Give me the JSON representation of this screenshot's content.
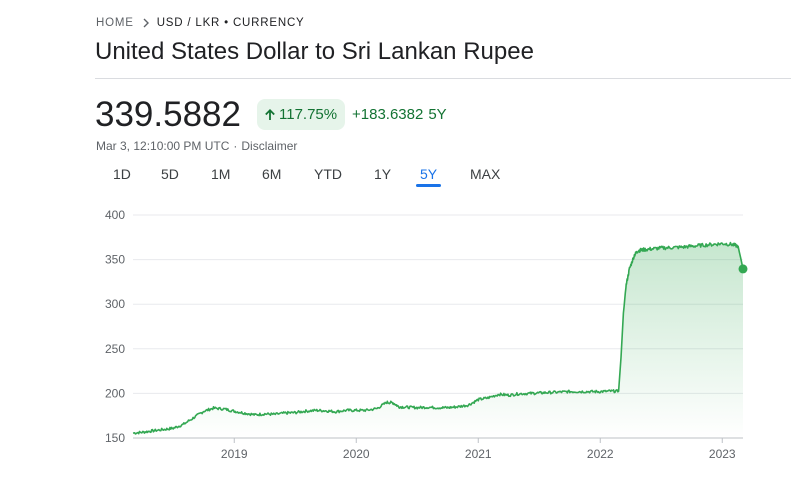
{
  "breadcrumb": {
    "home": "HOME",
    "current": "USD / LKR • CURRENCY"
  },
  "title": "United States Dollar to Sri Lankan Rupee",
  "price": "339.5882",
  "change": {
    "percent": "117.75%",
    "amount": "+183.6382",
    "period": "5Y"
  },
  "timestamp": {
    "time": "Mar 3, 12:10:00 PM UTC",
    "disclaimer": "Disclaimer"
  },
  "ranges": [
    "1D",
    "5D",
    "1M",
    "6M",
    "YTD",
    "1Y",
    "5Y",
    "MAX"
  ],
  "active_range": "5Y",
  "colors": {
    "positive": "#34a853",
    "positive_text": "#137333",
    "accent": "#1a73e8"
  },
  "chart_data": {
    "type": "area",
    "x_tick_labels": [
      "2019",
      "2020",
      "2021",
      "2022",
      "2023"
    ],
    "x_ticks": [
      2019.0,
      2020.0,
      2021.0,
      2022.0,
      2023.0
    ],
    "xlim": [
      2018.17,
      2023.17
    ],
    "y_tick_labels": [
      "150",
      "200",
      "250",
      "300",
      "350",
      "400"
    ],
    "ylim": [
      150,
      400
    ],
    "grid": true,
    "series": [
      {
        "x": [
          2018.17,
          2018.25,
          2018.33,
          2018.42,
          2018.5,
          2018.58,
          2018.67,
          2018.75,
          2018.83,
          2018.92,
          2019.0,
          2019.08,
          2019.17,
          2019.25,
          2019.33,
          2019.42,
          2019.5,
          2019.58,
          2019.67,
          2019.75,
          2019.83,
          2019.92,
          2020.0,
          2020.08,
          2020.17,
          2020.25,
          2020.3,
          2020.35,
          2020.42,
          2020.5,
          2020.58,
          2020.67,
          2020.75,
          2020.83,
          2020.92,
          2021.0,
          2021.08,
          2021.17,
          2021.25,
          2021.33,
          2021.42,
          2021.5,
          2021.58,
          2021.67,
          2021.75,
          2021.83,
          2021.92,
          2022.0,
          2022.08,
          2022.15,
          2022.17,
          2022.19,
          2022.21,
          2022.24,
          2022.28,
          2022.31,
          2022.35,
          2022.42,
          2022.5,
          2022.58,
          2022.67,
          2022.75,
          2022.83,
          2022.92,
          2023.0,
          2023.08,
          2023.13,
          2023.17
        ],
        "values": [
          155.5,
          156.5,
          158,
          159.5,
          161,
          165,
          173,
          180,
          183.5,
          182.5,
          180,
          178,
          176,
          177,
          176.5,
          178,
          178.5,
          180,
          181,
          180.5,
          179.5,
          181,
          181,
          181,
          183,
          190,
          189.5,
          185,
          184.5,
          184,
          184.5,
          184,
          184,
          185,
          187,
          193,
          195,
          199,
          198,
          199.5,
          200,
          200.5,
          201,
          201.5,
          202,
          202,
          202,
          202,
          202.5,
          202.5,
          240,
          290,
          320,
          340,
          355,
          360,
          361,
          362,
          363,
          363.5,
          364,
          365,
          366,
          367,
          368,
          367,
          365,
          339.5882
        ]
      }
    ]
  }
}
